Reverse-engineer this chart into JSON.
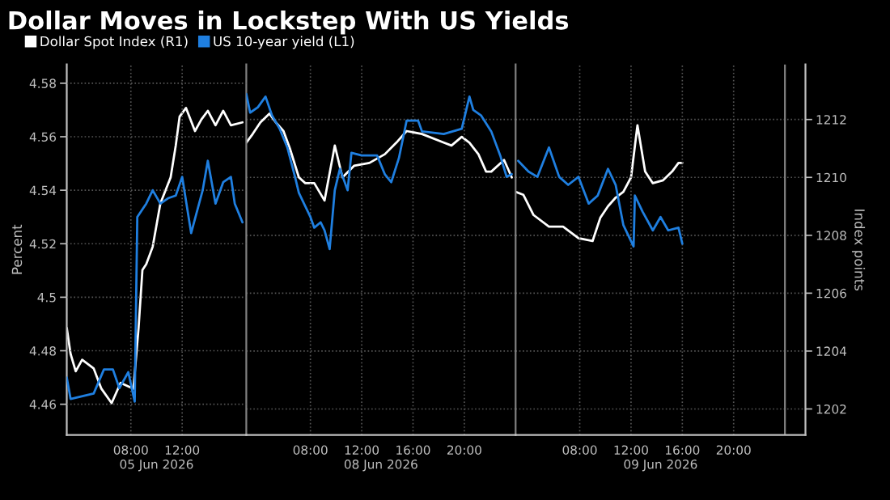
{
  "chart_data": [
    {
      "type": "line",
      "title": "Dollar Moves in Lockstep With US Yields",
      "xlabel": "05 Jun 2026",
      "ylabel": "Percent",
      "xlim": [
        "2026-06-05T03:00",
        "2026-06-05T17:00"
      ],
      "xticks": [
        {
          "value": "2026-06-05T08:00",
          "label": "08:00"
        },
        {
          "value": "2026-06-05T12:00",
          "label": "12:00"
        }
      ],
      "ylim": [
        4.4485,
        4.587
      ],
      "yticks": [
        4.46,
        4.48,
        4.5,
        4.52,
        4.54,
        4.56,
        4.58
      ],
      "y2lim": [
        1201.1,
        1213.9
      ],
      "grid": true,
      "legend": "top right",
      "series": [
        {
          "name": "Dollar Spot Index (R1)",
          "color": "#ffffff",
          "axis": "y2",
          "x": [
            "2026-06-05T03:00",
            "2026-06-05T03:18",
            "2026-06-05T03:42",
            "2026-06-05T04:12",
            "2026-06-05T05:06",
            "2026-06-05T05:42",
            "2026-06-05T06:30",
            "2026-06-05T07:12",
            "2026-06-05T08:12",
            "2026-06-05T08:36",
            "2026-06-05T08:54",
            "2026-06-05T09:12",
            "2026-06-05T09:42",
            "2026-06-05T10:18",
            "2026-06-05T11:06",
            "2026-06-05T11:30",
            "2026-06-05T11:48",
            "2026-06-05T12:18",
            "2026-06-05T13:00",
            "2026-06-05T13:30",
            "2026-06-05T14:00",
            "2026-06-05T14:36",
            "2026-06-05T15:12",
            "2026-06-05T15:48",
            "2026-06-05T16:42"
          ],
          "values": [
            1204.8,
            1203.9,
            1203.3,
            1203.7,
            1203.4,
            1202.7,
            1202.2,
            1202.9,
            1202.7,
            1204.8,
            1206.8,
            1207.0,
            1207.6,
            1209.1,
            1210.0,
            1211.1,
            1212.1,
            1212.4,
            1211.6,
            1212.0,
            1212.3,
            1211.8,
            1212.3,
            1211.8,
            1211.9
          ]
        },
        {
          "name": "US 10-year yield (L1)",
          "color": "#1f7fe0",
          "axis": "y",
          "x": [
            "2026-06-05T03:00",
            "2026-06-05T03:18",
            "2026-06-05T05:06",
            "2026-06-05T05:54",
            "2026-06-05T06:36",
            "2026-06-05T07:06",
            "2026-06-05T07:48",
            "2026-06-05T08:18",
            "2026-06-05T08:30",
            "2026-06-05T09:12",
            "2026-06-05T09:42",
            "2026-06-05T10:18",
            "2026-06-05T10:54",
            "2026-06-05T11:30",
            "2026-06-05T12:00",
            "2026-06-05T12:42",
            "2026-06-05T13:36",
            "2026-06-05T14:00",
            "2026-06-05T14:36",
            "2026-06-05T15:12",
            "2026-06-05T15:48",
            "2026-06-05T16:06",
            "2026-06-05T16:42"
          ],
          "values": [
            4.47,
            4.462,
            4.464,
            4.473,
            4.473,
            4.466,
            4.472,
            4.461,
            4.53,
            4.535,
            4.54,
            4.535,
            4.537,
            4.538,
            4.545,
            4.524,
            4.54,
            4.551,
            4.535,
            4.543,
            4.545,
            4.535,
            4.528
          ]
        }
      ]
    },
    {
      "type": "line",
      "xlabel": "08 Jun 2026",
      "xlim": [
        "2026-06-08T03:00",
        "2026-06-09T00:00"
      ],
      "xticks": [
        {
          "value": "2026-06-08T08:00",
          "label": "08:00"
        },
        {
          "value": "2026-06-08T12:00",
          "label": "12:00"
        },
        {
          "value": "2026-06-08T16:00",
          "label": "16:00"
        },
        {
          "value": "2026-06-08T20:00",
          "label": "20:00"
        }
      ],
      "ylim": [
        4.4485,
        4.587
      ],
      "y2lim": [
        1201.1,
        1213.9
      ],
      "y2ticks": [
        1202,
        1204,
        1206,
        1208,
        1210,
        1212
      ],
      "tick_labels": "x",
      "grid": true,
      "series": [
        {
          "color": "#ffffff",
          "axis": "y2",
          "x": [
            "2026-06-08T03:00",
            "2026-06-08T03:30",
            "2026-06-08T04:06",
            "2026-06-08T04:48",
            "2026-06-08T05:18",
            "2026-06-08T05:54",
            "2026-06-08T06:24",
            "2026-06-08T07:06",
            "2026-06-08T07:36",
            "2026-06-08T08:18",
            "2026-06-08T09:06",
            "2026-06-08T09:54",
            "2026-06-08T10:30",
            "2026-06-08T11:24",
            "2026-06-08T12:36",
            "2026-06-08T13:48",
            "2026-06-08T14:42",
            "2026-06-08T15:30",
            "2026-06-08T16:42",
            "2026-06-08T18:24",
            "2026-06-08T19:00",
            "2026-06-08T19:48",
            "2026-06-08T20:24",
            "2026-06-08T21:06",
            "2026-06-08T21:42",
            "2026-06-08T22:06",
            "2026-06-08T23:06",
            "2026-06-08T23:42"
          ],
          "values": [
            1211.2,
            1211.5,
            1211.9,
            1212.2,
            1211.9,
            1211.6,
            1211.0,
            1210.0,
            1209.8,
            1209.8,
            1209.2,
            1211.1,
            1210.0,
            1210.4,
            1210.5,
            1210.8,
            1211.2,
            1211.6,
            1211.5,
            1211.2,
            1211.1,
            1211.4,
            1211.2,
            1210.8,
            1210.2,
            1210.2,
            1210.6,
            1210.0
          ]
        },
        {
          "color": "#1f7fe0",
          "axis": "y",
          "x": [
            "2026-06-08T03:00",
            "2026-06-08T03:18",
            "2026-06-08T03:54",
            "2026-06-08T04:30",
            "2026-06-08T05:00",
            "2026-06-08T05:36",
            "2026-06-08T06:12",
            "2026-06-08T06:48",
            "2026-06-08T07:06",
            "2026-06-08T08:00",
            "2026-06-08T08:18",
            "2026-06-08T08:48",
            "2026-06-08T09:06",
            "2026-06-08T09:30",
            "2026-06-08T09:54",
            "2026-06-08T10:18",
            "2026-06-08T10:54",
            "2026-06-08T11:12",
            "2026-06-08T12:00",
            "2026-06-08T13:12",
            "2026-06-08T13:48",
            "2026-06-08T14:18",
            "2026-06-08T14:54",
            "2026-06-08T15:30",
            "2026-06-08T16:24",
            "2026-06-08T16:42",
            "2026-06-08T18:24",
            "2026-06-08T19:48",
            "2026-06-08T20:12",
            "2026-06-08T20:24",
            "2026-06-08T20:42",
            "2026-06-08T21:18",
            "2026-06-08T22:06",
            "2026-06-08T22:48",
            "2026-06-08T23:18",
            "2026-06-08T23:42"
          ],
          "values": [
            4.576,
            4.569,
            4.571,
            4.575,
            4.568,
            4.563,
            4.556,
            4.545,
            4.539,
            4.53,
            4.526,
            4.528,
            4.525,
            4.518,
            4.54,
            4.548,
            4.54,
            4.554,
            4.553,
            4.553,
            4.546,
            4.543,
            4.552,
            4.566,
            4.566,
            4.562,
            4.561,
            4.563,
            4.571,
            4.575,
            4.57,
            4.568,
            4.562,
            4.553,
            4.545,
            4.546
          ]
        }
      ]
    },
    {
      "type": "line",
      "xlabel": "09 Jun 2026",
      "y2label": "Index points",
      "xlim": [
        "2026-06-09T03:00",
        "2026-06-10T01:36"
      ],
      "xticks": [
        {
          "value": "2026-06-09T08:00",
          "label": "08:00"
        },
        {
          "value": "2026-06-09T12:00",
          "label": "12:00"
        },
        {
          "value": "2026-06-09T16:00",
          "label": "16:00"
        },
        {
          "value": "2026-06-09T20:00",
          "label": "20:00"
        }
      ],
      "ylim": [
        4.4485,
        4.587
      ],
      "y2lim": [
        1201.1,
        1213.9
      ],
      "y2ticks": [
        1202,
        1204,
        1206,
        1208,
        1210,
        1212
      ],
      "grid": true,
      "ref_lines": [
        {
          "axis": "x",
          "value": "2026-06-10T00:00",
          "color": "#808080"
        }
      ],
      "series": [
        {
          "color": "#ffffff",
          "axis": "y2",
          "x": [
            "2026-06-09T03:00",
            "2026-06-09T03:36",
            "2026-06-09T04:24",
            "2026-06-09T05:36",
            "2026-06-09T06:42",
            "2026-06-09T07:54",
            "2026-06-09T09:00",
            "2026-06-09T09:36",
            "2026-06-09T10:12",
            "2026-06-09T10:48",
            "2026-06-09T11:24",
            "2026-06-09T12:00",
            "2026-06-09T12:30",
            "2026-06-09T13:06",
            "2026-06-09T13:42",
            "2026-06-09T14:30",
            "2026-06-09T15:12",
            "2026-06-09T15:42",
            "2026-06-09T16:00"
          ],
          "values": [
            1209.5,
            1209.4,
            1208.7,
            1208.3,
            1208.3,
            1207.9,
            1207.8,
            1208.6,
            1209.0,
            1209.3,
            1209.5,
            1210.0,
            1211.8,
            1210.2,
            1209.8,
            1209.9,
            1210.2,
            1210.5,
            1210.5
          ]
        },
        {
          "color": "#1f7fe0",
          "axis": "y",
          "x": [
            "2026-06-09T03:12",
            "2026-06-09T04:00",
            "2026-06-09T04:42",
            "2026-06-09T05:36",
            "2026-06-09T06:24",
            "2026-06-09T07:06",
            "2026-06-09T07:54",
            "2026-06-09T08:42",
            "2026-06-09T09:24",
            "2026-06-09T10:12",
            "2026-06-09T10:48",
            "2026-06-09T11:24",
            "2026-06-09T12:12",
            "2026-06-09T12:18",
            "2026-06-09T12:54",
            "2026-06-09T13:42",
            "2026-06-09T14:18",
            "2026-06-09T14:54",
            "2026-06-09T15:42",
            "2026-06-09T16:00"
          ],
          "values": [
            4.551,
            4.547,
            4.545,
            4.556,
            4.545,
            4.542,
            4.545,
            4.535,
            4.538,
            4.548,
            4.542,
            4.527,
            4.519,
            4.538,
            4.532,
            4.525,
            4.53,
            4.525,
            4.526,
            4.52
          ]
        }
      ]
    }
  ]
}
